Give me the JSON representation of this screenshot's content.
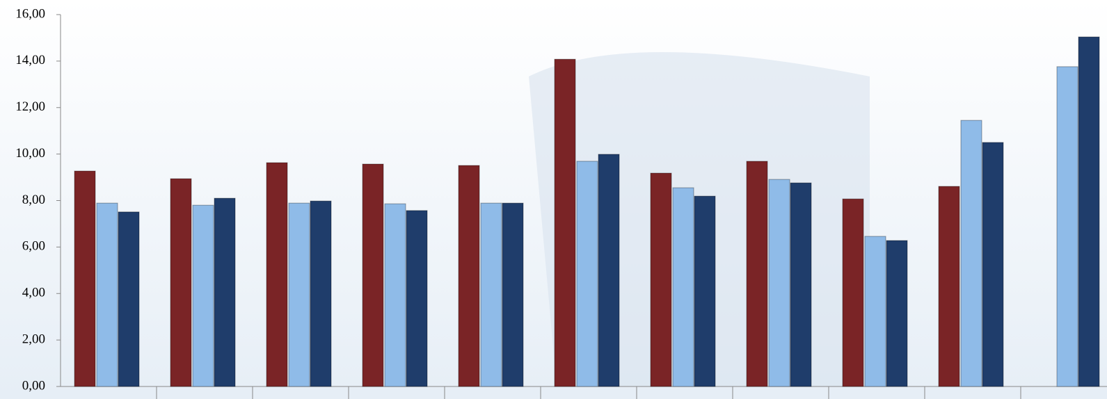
{
  "chart_data": {
    "type": "bar",
    "categories": [
      null,
      null,
      null,
      null,
      null,
      null,
      null,
      null,
      null,
      null,
      null
    ],
    "series": [
      {
        "color": "#7a2426",
        "values": [
          9.27,
          8.94,
          9.63,
          9.57,
          9.51,
          14.08,
          9.18,
          9.69,
          8.07,
          8.61,
          null
        ]
      },
      {
        "color": "#8fbbe8",
        "values": [
          7.89,
          7.8,
          7.89,
          7.86,
          7.89,
          9.69,
          8.55,
          8.91,
          6.46,
          11.45,
          13.76
        ]
      },
      {
        "color": "#1f3d6b",
        "values": [
          7.51,
          8.1,
          7.98,
          7.57,
          7.89,
          9.99,
          8.19,
          8.76,
          6.28,
          10.5,
          15.04
        ]
      }
    ],
    "ylim": [
      0,
      16
    ],
    "yticks": [
      {
        "value": 0,
        "label": "0,00"
      },
      {
        "value": 2,
        "label": "2,00"
      },
      {
        "value": 4,
        "label": "4,00"
      },
      {
        "value": 6,
        "label": "6,00"
      },
      {
        "value": 8,
        "label": "8,00"
      },
      {
        "value": 10,
        "label": "10,00"
      },
      {
        "value": 12,
        "label": "12,00"
      },
      {
        "value": 14,
        "label": "14,00"
      },
      {
        "value": 16,
        "label": "16,00"
      }
    ]
  }
}
